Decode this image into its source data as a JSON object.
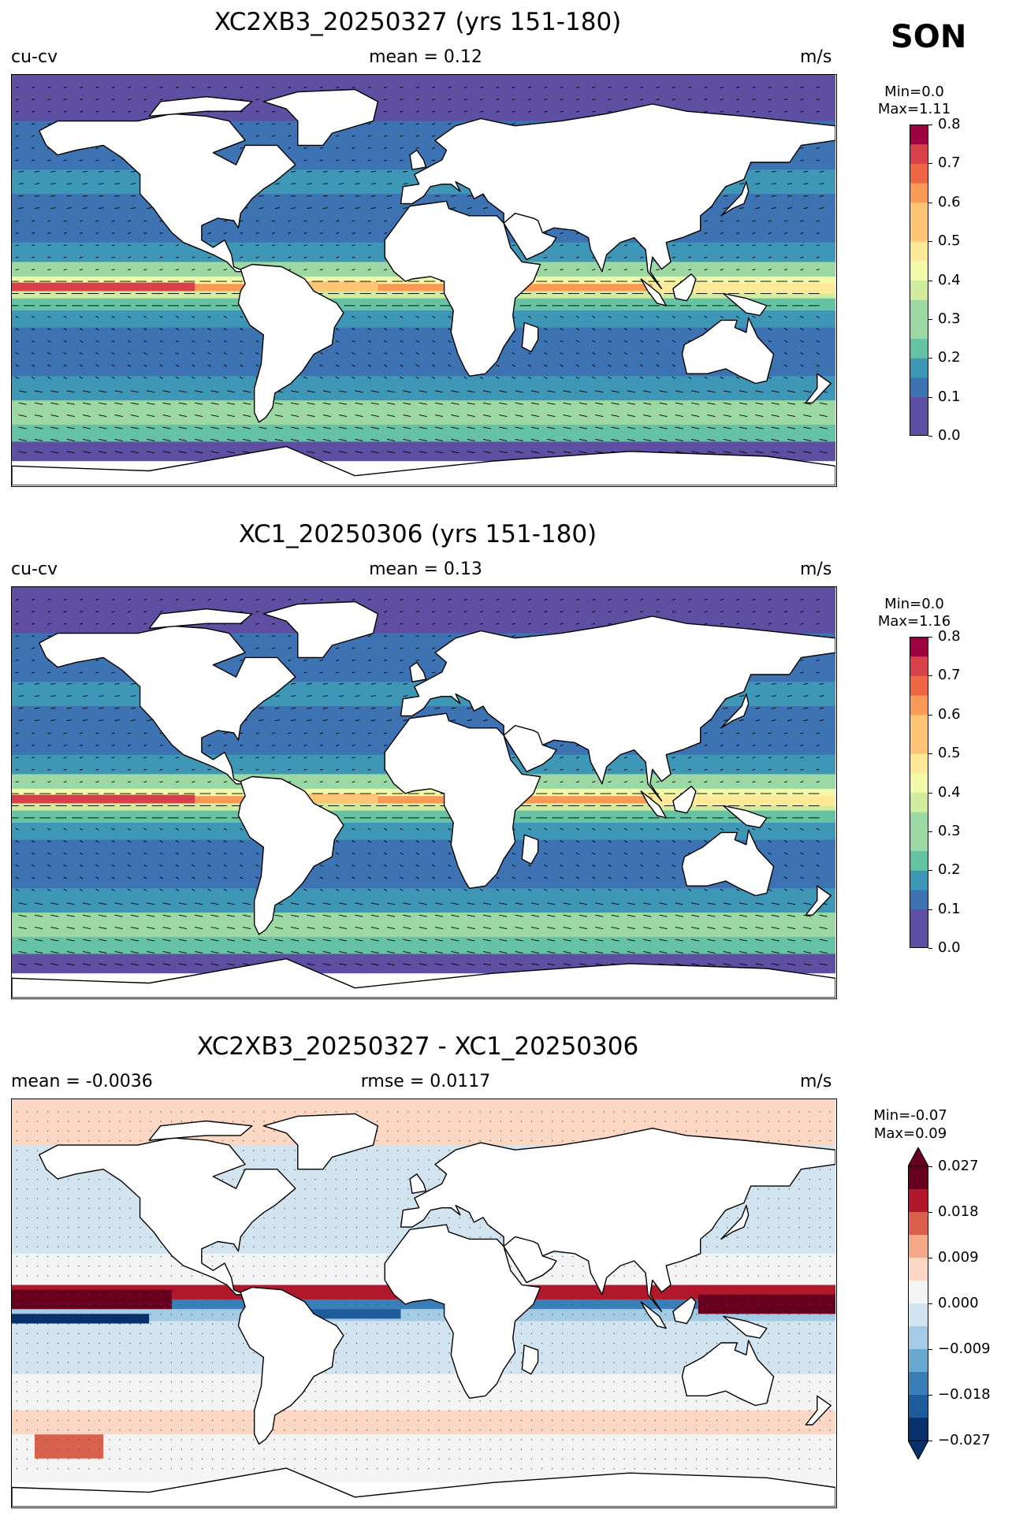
{
  "season": "SON",
  "panels": [
    {
      "title": "XC2XB3_20250327 (yrs 151-180)",
      "left_label": "cu-cv",
      "center_label": "mean = 0.12",
      "units": "m/s",
      "min_text": "Min=0.0",
      "max_text": "Max=1.11",
      "colorbar": {
        "ticks": [
          "0.0",
          "0.1",
          "0.2",
          "0.3",
          "0.4",
          "0.5",
          "0.6",
          "0.7",
          "0.8"
        ],
        "range": [
          0.0,
          0.8
        ],
        "colormap": "Spectral_r"
      }
    },
    {
      "title": "XC1_20250306 (yrs 151-180)",
      "left_label": "cu-cv",
      "center_label": "mean = 0.13",
      "units": "m/s",
      "min_text": "Min=0.0",
      "max_text": "Max=1.16",
      "colorbar": {
        "ticks": [
          "0.0",
          "0.1",
          "0.2",
          "0.3",
          "0.4",
          "0.5",
          "0.6",
          "0.7",
          "0.8"
        ],
        "range": [
          0.0,
          0.8
        ],
        "colormap": "Spectral_r"
      }
    },
    {
      "title": "XC2XB3_20250327 - XC1_20250306",
      "left_label": "mean = -0.0036",
      "center_label": "rmse = 0.0117",
      "units": "m/s",
      "min_text": "Min=-0.07",
      "max_text": "Max=0.09",
      "colorbar": {
        "ticks": [
          "0.027",
          "0.018",
          "0.009",
          "0.000",
          "−0.009",
          "−0.018",
          "−0.027"
        ],
        "range": [
          -0.03,
          0.03
        ],
        "colormap": "RdBu_r"
      }
    }
  ],
  "chart_data": [
    {
      "type": "heatmap",
      "title": "XC2XB3_20250327 (yrs 151-180)",
      "mean": 0.12,
      "min": 0.0,
      "max": 1.11,
      "units": "m/s",
      "colorbar_range": [
        0.0,
        0.8
      ],
      "overlay": "velocity vectors"
    },
    {
      "type": "heatmap",
      "title": "XC1_20250306 (yrs 151-180)",
      "mean": 0.13,
      "min": 0.0,
      "max": 1.16,
      "units": "m/s",
      "colorbar_range": [
        0.0,
        0.8
      ],
      "overlay": "velocity vectors"
    },
    {
      "type": "heatmap",
      "title": "XC2XB3_20250327 - XC1_20250306",
      "mean": -0.0036,
      "rmse": 0.0117,
      "min": -0.07,
      "max": 0.09,
      "units": "m/s",
      "colorbar_range": [
        -0.027,
        0.027
      ]
    }
  ]
}
